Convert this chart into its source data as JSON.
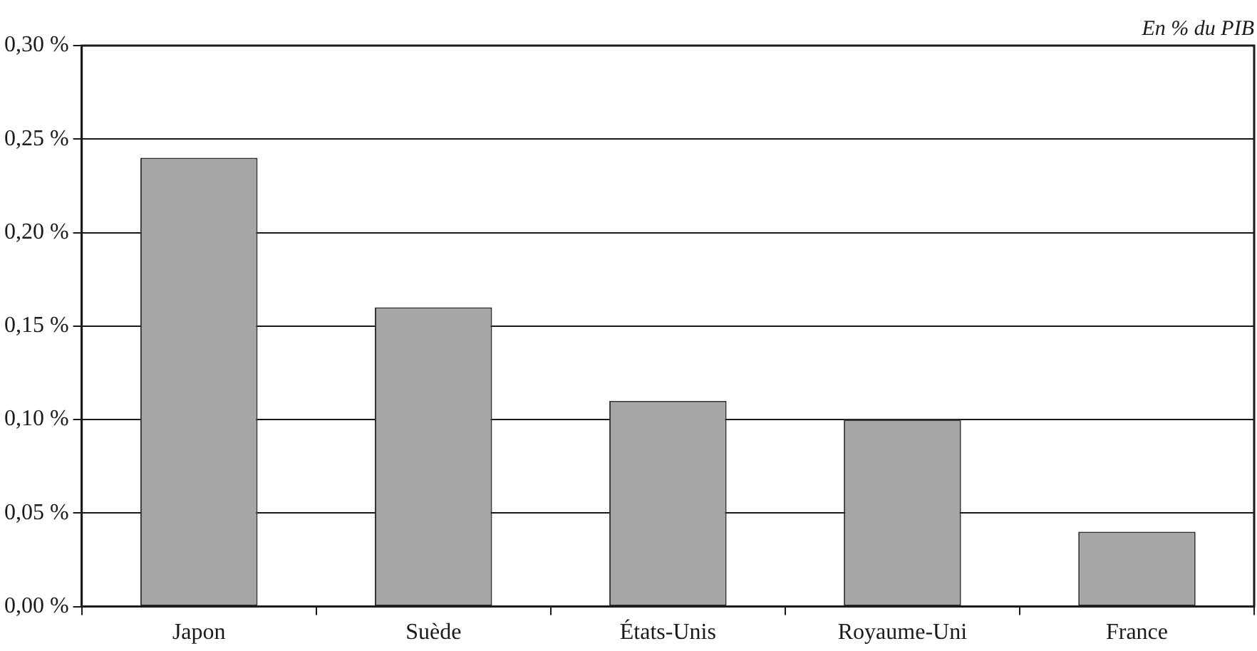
{
  "chart_data": {
    "type": "bar",
    "annotations": [
      "En % du PIB"
    ],
    "categories": [
      "Japon",
      "Suède",
      "États-Unis",
      "Royaume-Uni",
      "France"
    ],
    "values": [
      0.24,
      0.16,
      0.11,
      0.1,
      0.04
    ],
    "color": "#a6a6a6",
    "ylim": [
      0,
      0.3
    ],
    "yticks": [
      {
        "value": 0,
        "label": "0,00 %"
      },
      {
        "value": 0.05,
        "label": "0,05 %"
      },
      {
        "value": 0.1,
        "label": "0,10 %"
      },
      {
        "value": 0.15,
        "label": "0,15 %"
      },
      {
        "value": 0.2,
        "label": "0,20 %"
      },
      {
        "value": 0.25,
        "label": "0,25 %"
      },
      {
        "value": 0.3,
        "label": "0,30 %"
      }
    ],
    "grid": "y",
    "legend": false
  }
}
